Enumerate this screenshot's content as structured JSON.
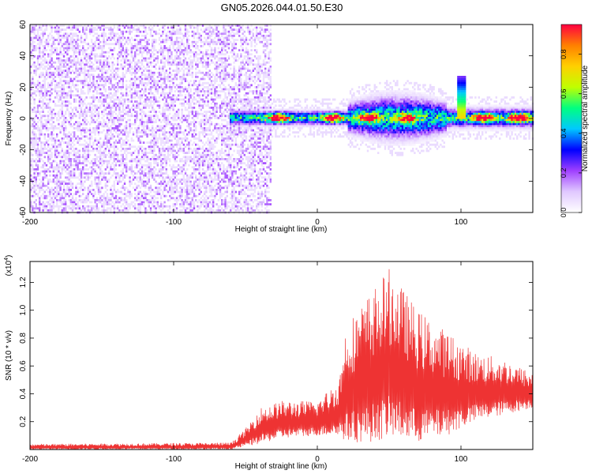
{
  "chart_data": [
    {
      "type": "heatmap",
      "title": "GN05.2026.044.01.50.E30",
      "xlabel": "Height of straight line (km)",
      "ylabel": "Frequency (Hz)",
      "xlim": [
        -200,
        150
      ],
      "ylim": [
        -60,
        60
      ],
      "xticks": [
        -200,
        -100,
        0,
        100
      ],
      "yticks": [
        60,
        40,
        20,
        0,
        -20,
        -40,
        -60
      ],
      "colorbar": {
        "label": "Normalized spectral amplitude",
        "range": [
          0,
          0.95
        ],
        "ticks": [
          0.0,
          0.2,
          0.4,
          0.6,
          0.8
        ],
        "colormap": [
          "#ffffff",
          "#e0c8ff",
          "#a040ff",
          "#0000ff",
          "#00c8ff",
          "#00ff80",
          "#c0ff00",
          "#ffd000",
          "#ff8000",
          "#ff0040"
        ]
      },
      "features": {
        "noise_region_x": [
          -200,
          -32
        ],
        "noise_level": 0.15,
        "signal_band_start_x": -62,
        "signal_band_center_hz": 0,
        "spike": {
          "x": 100,
          "freq_hz": 24,
          "value": 0.6
        },
        "hotspots": [
          {
            "x": -28,
            "value": 0.9
          },
          {
            "x": 10,
            "value": 0.9
          },
          {
            "x": 35,
            "value": 0.85
          },
          {
            "x": 62,
            "value": 0.7
          },
          {
            "x": 115,
            "value": 0.8
          },
          {
            "x": 140,
            "value": 0.9
          }
        ]
      },
      "grid": false
    },
    {
      "type": "line",
      "title": "",
      "xlabel": "Height of straight line (km)",
      "ylabel": "SNR (10 * v/v)",
      "y_multiplier": "(x10",
      "y_multiplier_exp": "4",
      "y_multiplier_close": ")",
      "xlim": [
        -200,
        150
      ],
      "ylim": [
        0,
        1.35
      ],
      "xticks": [
        -200,
        -100,
        0,
        100
      ],
      "yticks": [
        0.2,
        0.4,
        0.6,
        0.8,
        1.0,
        1.2
      ],
      "series": [
        {
          "color": "#ee3333",
          "envelope": [
            {
              "x": -200,
              "low": 0.0,
              "high": 0.04
            },
            {
              "x": -60,
              "low": 0.0,
              "high": 0.05
            },
            {
              "x": -50,
              "low": 0.02,
              "high": 0.15
            },
            {
              "x": -40,
              "low": 0.04,
              "high": 0.3
            },
            {
              "x": -25,
              "low": 0.08,
              "high": 0.35
            },
            {
              "x": 0,
              "low": 0.1,
              "high": 0.35
            },
            {
              "x": 15,
              "low": 0.1,
              "high": 0.5
            },
            {
              "x": 20,
              "low": 0.05,
              "high": 0.9
            },
            {
              "x": 35,
              "low": 0.05,
              "high": 1.1
            },
            {
              "x": 50,
              "low": 0.08,
              "high": 1.3
            },
            {
              "x": 70,
              "low": 0.05,
              "high": 1.0
            },
            {
              "x": 90,
              "low": 0.1,
              "high": 0.85
            },
            {
              "x": 110,
              "low": 0.2,
              "high": 0.7
            },
            {
              "x": 130,
              "low": 0.25,
              "high": 0.65
            },
            {
              "x": 150,
              "low": 0.3,
              "high": 0.55
            }
          ]
        }
      ],
      "grid": false
    }
  ]
}
